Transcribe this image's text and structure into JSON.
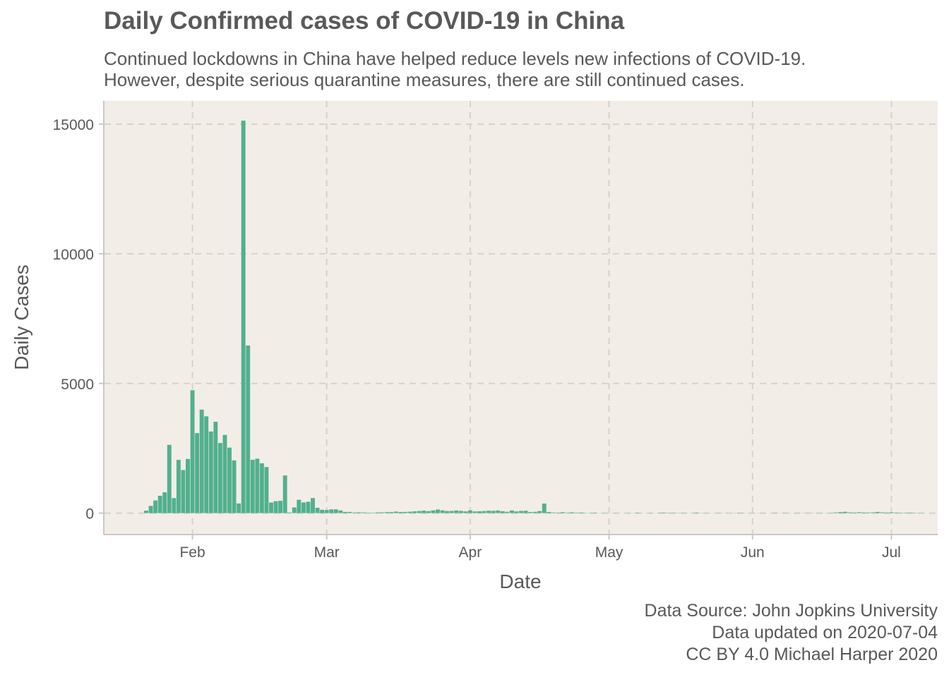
{
  "chart_data": {
    "type": "bar",
    "title": "Daily Confirmed cases of COVID-19 in China",
    "subtitle": [
      "Continued lockdowns in China have helped reduce levels new infections of COVID-19.",
      "However, despite serious quarantine measures, there are still continued cases."
    ],
    "caption": [
      "Data Source: John Jopkins University",
      "Data updated on 2020-07-04",
      "CC BY 4.0 Michael Harper 2020"
    ],
    "xlabel": "Date",
    "ylabel": "Daily Cases",
    "x_range": [
      "2020-01-13",
      "2020-07-11"
    ],
    "ylim": [
      -800,
      15900
    ],
    "y_ticks": [
      0,
      5000,
      10000,
      15000
    ],
    "x_ticks": [
      {
        "date": "2020-02-01",
        "label": "Feb"
      },
      {
        "date": "2020-03-01",
        "label": "Mar"
      },
      {
        "date": "2020-04-01",
        "label": "Apr"
      },
      {
        "date": "2020-05-01",
        "label": "May"
      },
      {
        "date": "2020-06-01",
        "label": "Jun"
      },
      {
        "date": "2020-07-01",
        "label": "Jul"
      }
    ],
    "grid": true,
    "bar_color": "#52B08E",
    "panel_background": "#F3EDE7",
    "series": [
      {
        "start_date": "2020-01-22",
        "values": [
          95,
          277,
          486,
          669,
          802,
          2632,
          578,
          2054,
          1661,
          2089,
          4739,
          3086,
          3991,
          3733,
          3147,
          3523,
          2704,
          3015,
          2525,
          2032,
          373,
          15136,
          6463,
          2055,
          2100,
          1921,
          1777,
          408,
          458,
          473,
          1451,
          21,
          219,
          514,
          410,
          439,
          579,
          206,
          129,
          120,
          143,
          146,
          102,
          46,
          45,
          20,
          31,
          26,
          11,
          18,
          27,
          29,
          39,
          39,
          58,
          44,
          46,
          54,
          67,
          80,
          95,
          77,
          104,
          138,
          107,
          81,
          84,
          102,
          85,
          65,
          105,
          65,
          72,
          80,
          93,
          88,
          102,
          73,
          51,
          101,
          66,
          83,
          91,
          41,
          50,
          79,
          368,
          42,
          24,
          16,
          37,
          18,
          30,
          20,
          22,
          6,
          11,
          14,
          3,
          5,
          2,
          3,
          2,
          1,
          2,
          5,
          14,
          3,
          2,
          7,
          3,
          12,
          19,
          11,
          9,
          9,
          8,
          2,
          6,
          17,
          6,
          3,
          3,
          3,
          5,
          4,
          2,
          6,
          8,
          7,
          1,
          2,
          3,
          2,
          1,
          3,
          6,
          3,
          5,
          4,
          1,
          5,
          5,
          2,
          4,
          4,
          4,
          6,
          7,
          25,
          40,
          52,
          28,
          20,
          34,
          24,
          22,
          26,
          45,
          30,
          20,
          29,
          19,
          12,
          17,
          19,
          14,
          4,
          3
        ]
      }
    ]
  }
}
